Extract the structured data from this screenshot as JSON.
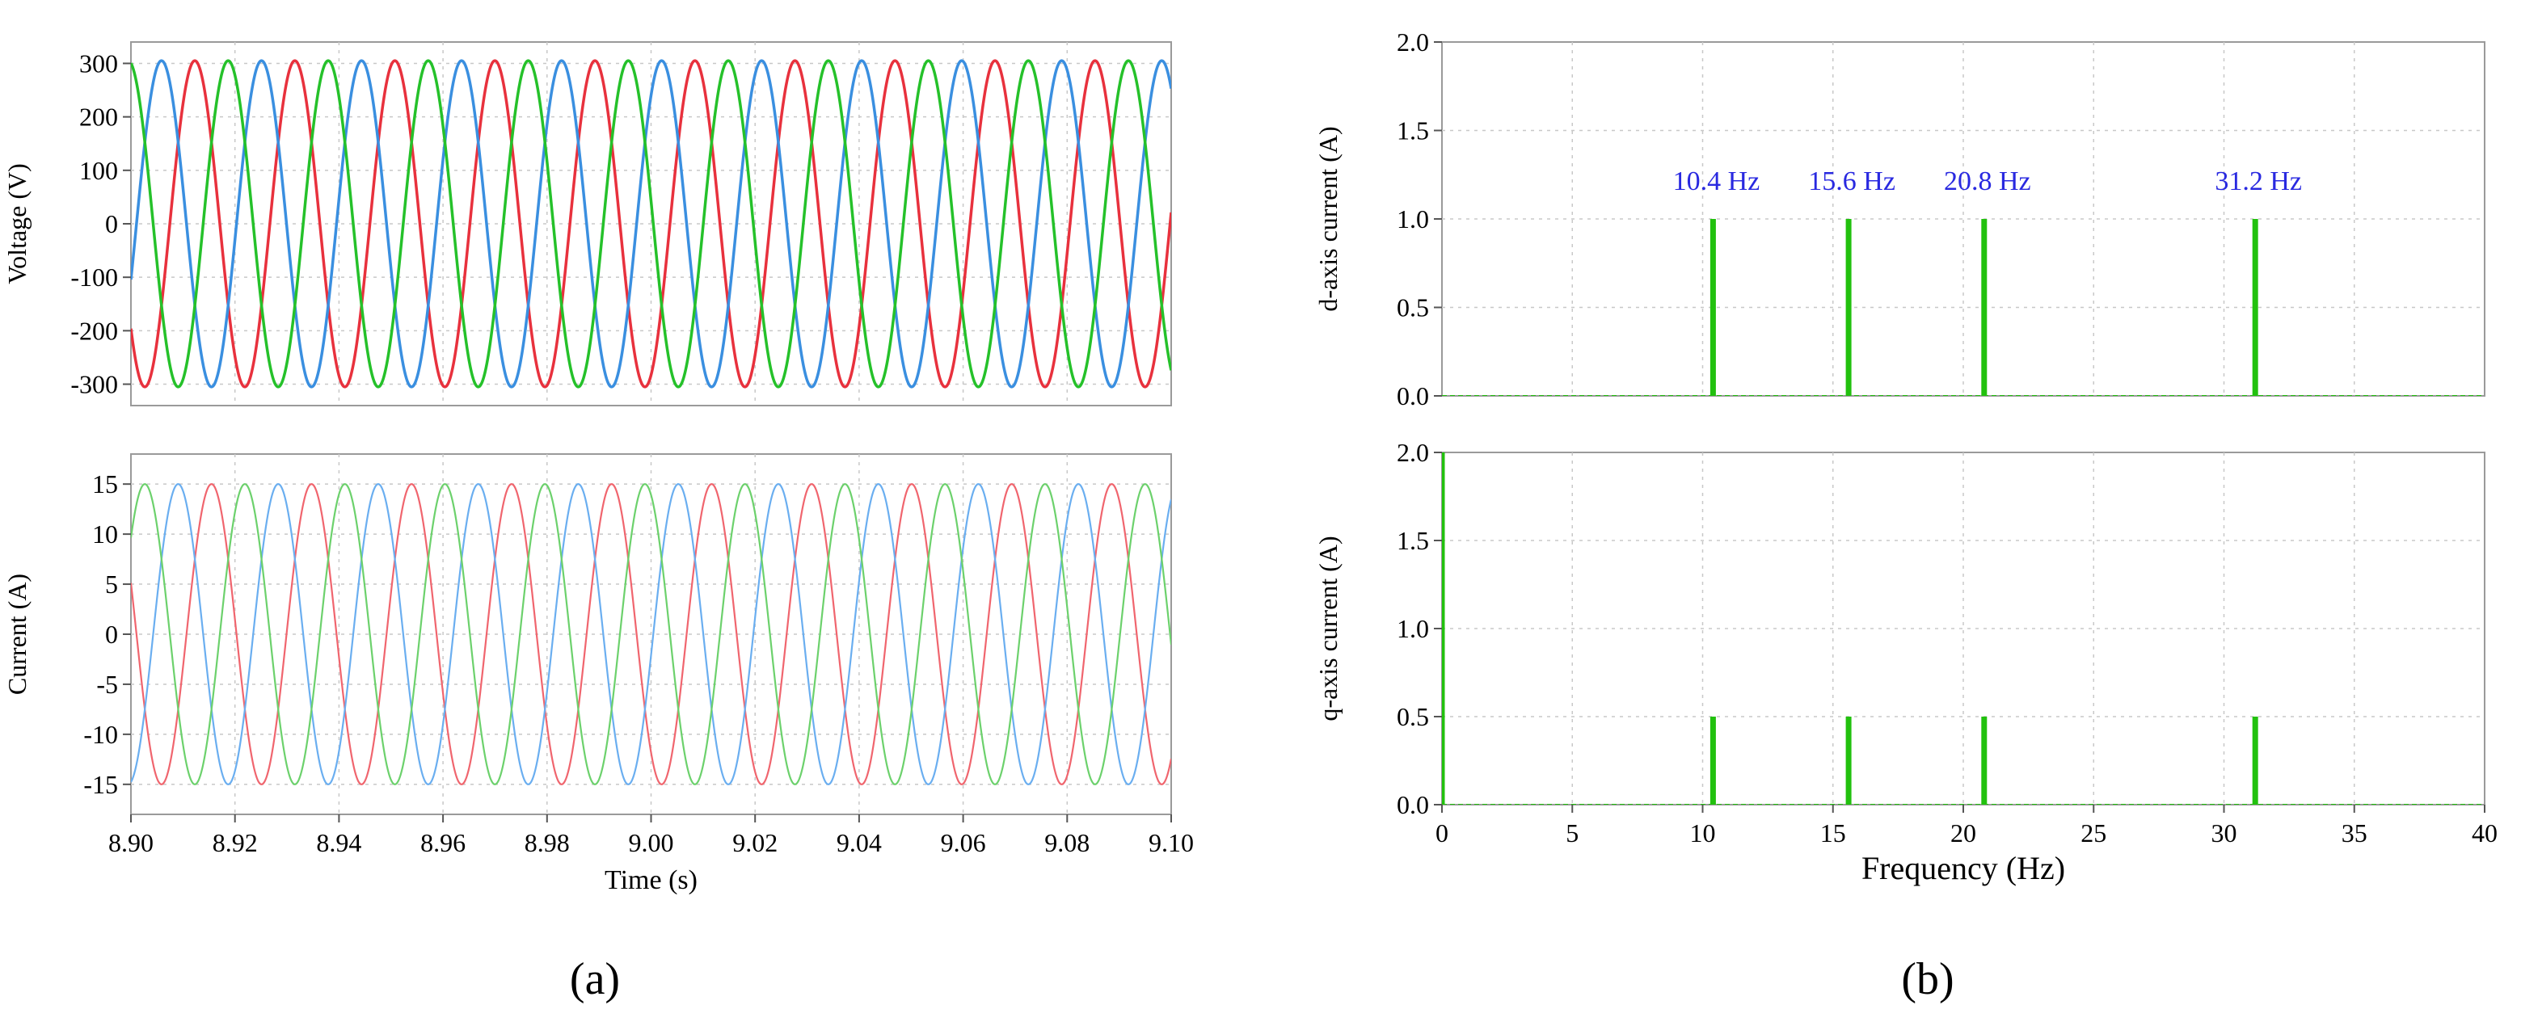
{
  "panels": [
    {
      "label": "(a)"
    },
    {
      "label": "(b)"
    }
  ],
  "chart_data": [
    {
      "id": "voltage",
      "type": "line",
      "ylabel": "Voltage (V)",
      "xlim": [
        8.9,
        9.1
      ],
      "ylim": [
        -340,
        340
      ],
      "yticks": [
        -300,
        -200,
        -100,
        0,
        100,
        200,
        300
      ],
      "frequency_hz": 52,
      "series": [
        {
          "amplitude": 305,
          "phase_deg": 220,
          "color": "#e8313d"
        },
        {
          "amplitude": 305,
          "phase_deg": 340,
          "color": "#3a8fe0"
        },
        {
          "amplitude": 305,
          "phase_deg": 100,
          "color": "#25c12a"
        }
      ]
    },
    {
      "id": "current",
      "type": "line",
      "ylabel": "Current (A)",
      "xlabel": "Time (s)",
      "xlim": [
        8.9,
        9.1
      ],
      "ylim": [
        -18,
        18
      ],
      "xticks": [
        "8.90",
        "8.92",
        "8.94",
        "8.96",
        "8.98",
        "9.00",
        "9.02",
        "9.04",
        "9.06",
        "9.08",
        "9.10"
      ],
      "yticks": [
        -15,
        -10,
        -5,
        0,
        5,
        10,
        15
      ],
      "frequency_hz": 52,
      "series": [
        {
          "amplitude": 15,
          "phase_deg": 160,
          "color": "#f0656e"
        },
        {
          "amplitude": 15,
          "phase_deg": 280,
          "color": "#6aaef0"
        },
        {
          "amplitude": 15,
          "phase_deg": 40,
          "color": "#6cd16c"
        }
      ]
    },
    {
      "id": "d-axis",
      "type": "bar",
      "ylabel": "d-axis current (A)",
      "xlim": [
        0,
        40
      ],
      "ylim": [
        0,
        2.0
      ],
      "yticks": [
        "0.0",
        "0.5",
        "1.0",
        "1.5",
        "2.0"
      ],
      "x": [
        10.4,
        15.6,
        20.8,
        31.2
      ],
      "values": [
        1.0,
        1.0,
        1.0,
        1.0
      ],
      "annotations": [
        "10.4 Hz",
        "15.6 Hz",
        "20.8 Hz",
        "31.2 Hz"
      ],
      "color": "#22c10e",
      "annotation_color": "#2929e0"
    },
    {
      "id": "q-axis",
      "type": "bar",
      "ylabel": "q-axis current (A)",
      "xlabel": "Frequency (Hz)",
      "xlim": [
        0,
        40
      ],
      "ylim": [
        0,
        2.0
      ],
      "xticks": [
        "0",
        "5",
        "10",
        "15",
        "20",
        "25",
        "30",
        "35",
        "40"
      ],
      "yticks": [
        "0.0",
        "0.5",
        "1.0",
        "1.5",
        "2.0"
      ],
      "x": [
        0,
        10.4,
        15.6,
        20.8,
        31.2
      ],
      "values": [
        2.0,
        0.5,
        0.5,
        0.5,
        0.5
      ],
      "color": "#22c10e"
    }
  ]
}
